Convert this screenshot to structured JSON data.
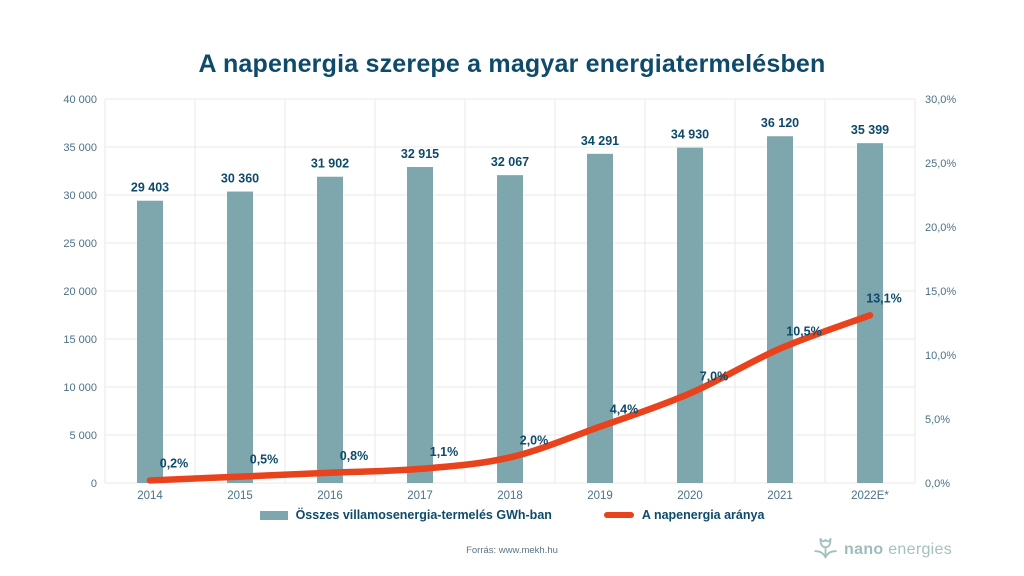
{
  "page": {
    "title": "A napenergia szerepe a magyar energiatermelésben"
  },
  "chart_data": {
    "type": "bar",
    "title": "A napenergia szerepe a magyar energiatermelésben",
    "categories": [
      "2014",
      "2015",
      "2016",
      "2017",
      "2018",
      "2019",
      "2020",
      "2021",
      "2022E*"
    ],
    "series": [
      {
        "name": "Összes villamosenergia-termelés GWh-ban",
        "type": "bar",
        "axis": "left",
        "color": "#7da6ad",
        "values": [
          29403,
          30360,
          31902,
          32915,
          32067,
          34291,
          34930,
          36120,
          35399
        ],
        "labels": [
          "29 403",
          "30 360",
          "31 902",
          "32 915",
          "32 067",
          "34 291",
          "34 930",
          "36 120",
          "35 399"
        ]
      },
      {
        "name": "A napenergia aránya",
        "type": "line",
        "axis": "right",
        "color": "#e8431c",
        "values": [
          0.2,
          0.5,
          0.8,
          1.1,
          2.0,
          4.4,
          7.0,
          10.5,
          13.1
        ],
        "labels": [
          "0,2%",
          "0,5%",
          "0,8%",
          "1,1%",
          "2,0%",
          "4,4%",
          "7,0%",
          "10,5%",
          "13,1%"
        ]
      }
    ],
    "left_axis": {
      "min": 0,
      "max": 40000,
      "step": 5000,
      "tick_labels": [
        "0",
        "5 000",
        "10 000",
        "15 000",
        "20 000",
        "25 000",
        "30 000",
        "35 000",
        "40 000"
      ]
    },
    "right_axis": {
      "min": 0,
      "max": 30,
      "step": 5,
      "tick_labels": [
        "0,0%",
        "5,0%",
        "10,0%",
        "15,0%",
        "20,0%",
        "25,0%",
        "30,0%"
      ]
    },
    "grid": true,
    "legend_position": "bottom"
  },
  "footer": {
    "source": "Forrás: www.mekh.hu"
  },
  "logo": {
    "brand": "nano",
    "suffix": "energies",
    "icon": "flower-icon",
    "color": "#a3c1c0"
  },
  "colors": {
    "title_navy": "#0e4a6b",
    "value_label_navy": "#0e4a6b",
    "axis_tick_gray": "#4c7186",
    "grid_line": "#e9eaea",
    "bar_teal": "#7da6ad",
    "line_orange": "#e8431c",
    "background": "#ffffff"
  }
}
